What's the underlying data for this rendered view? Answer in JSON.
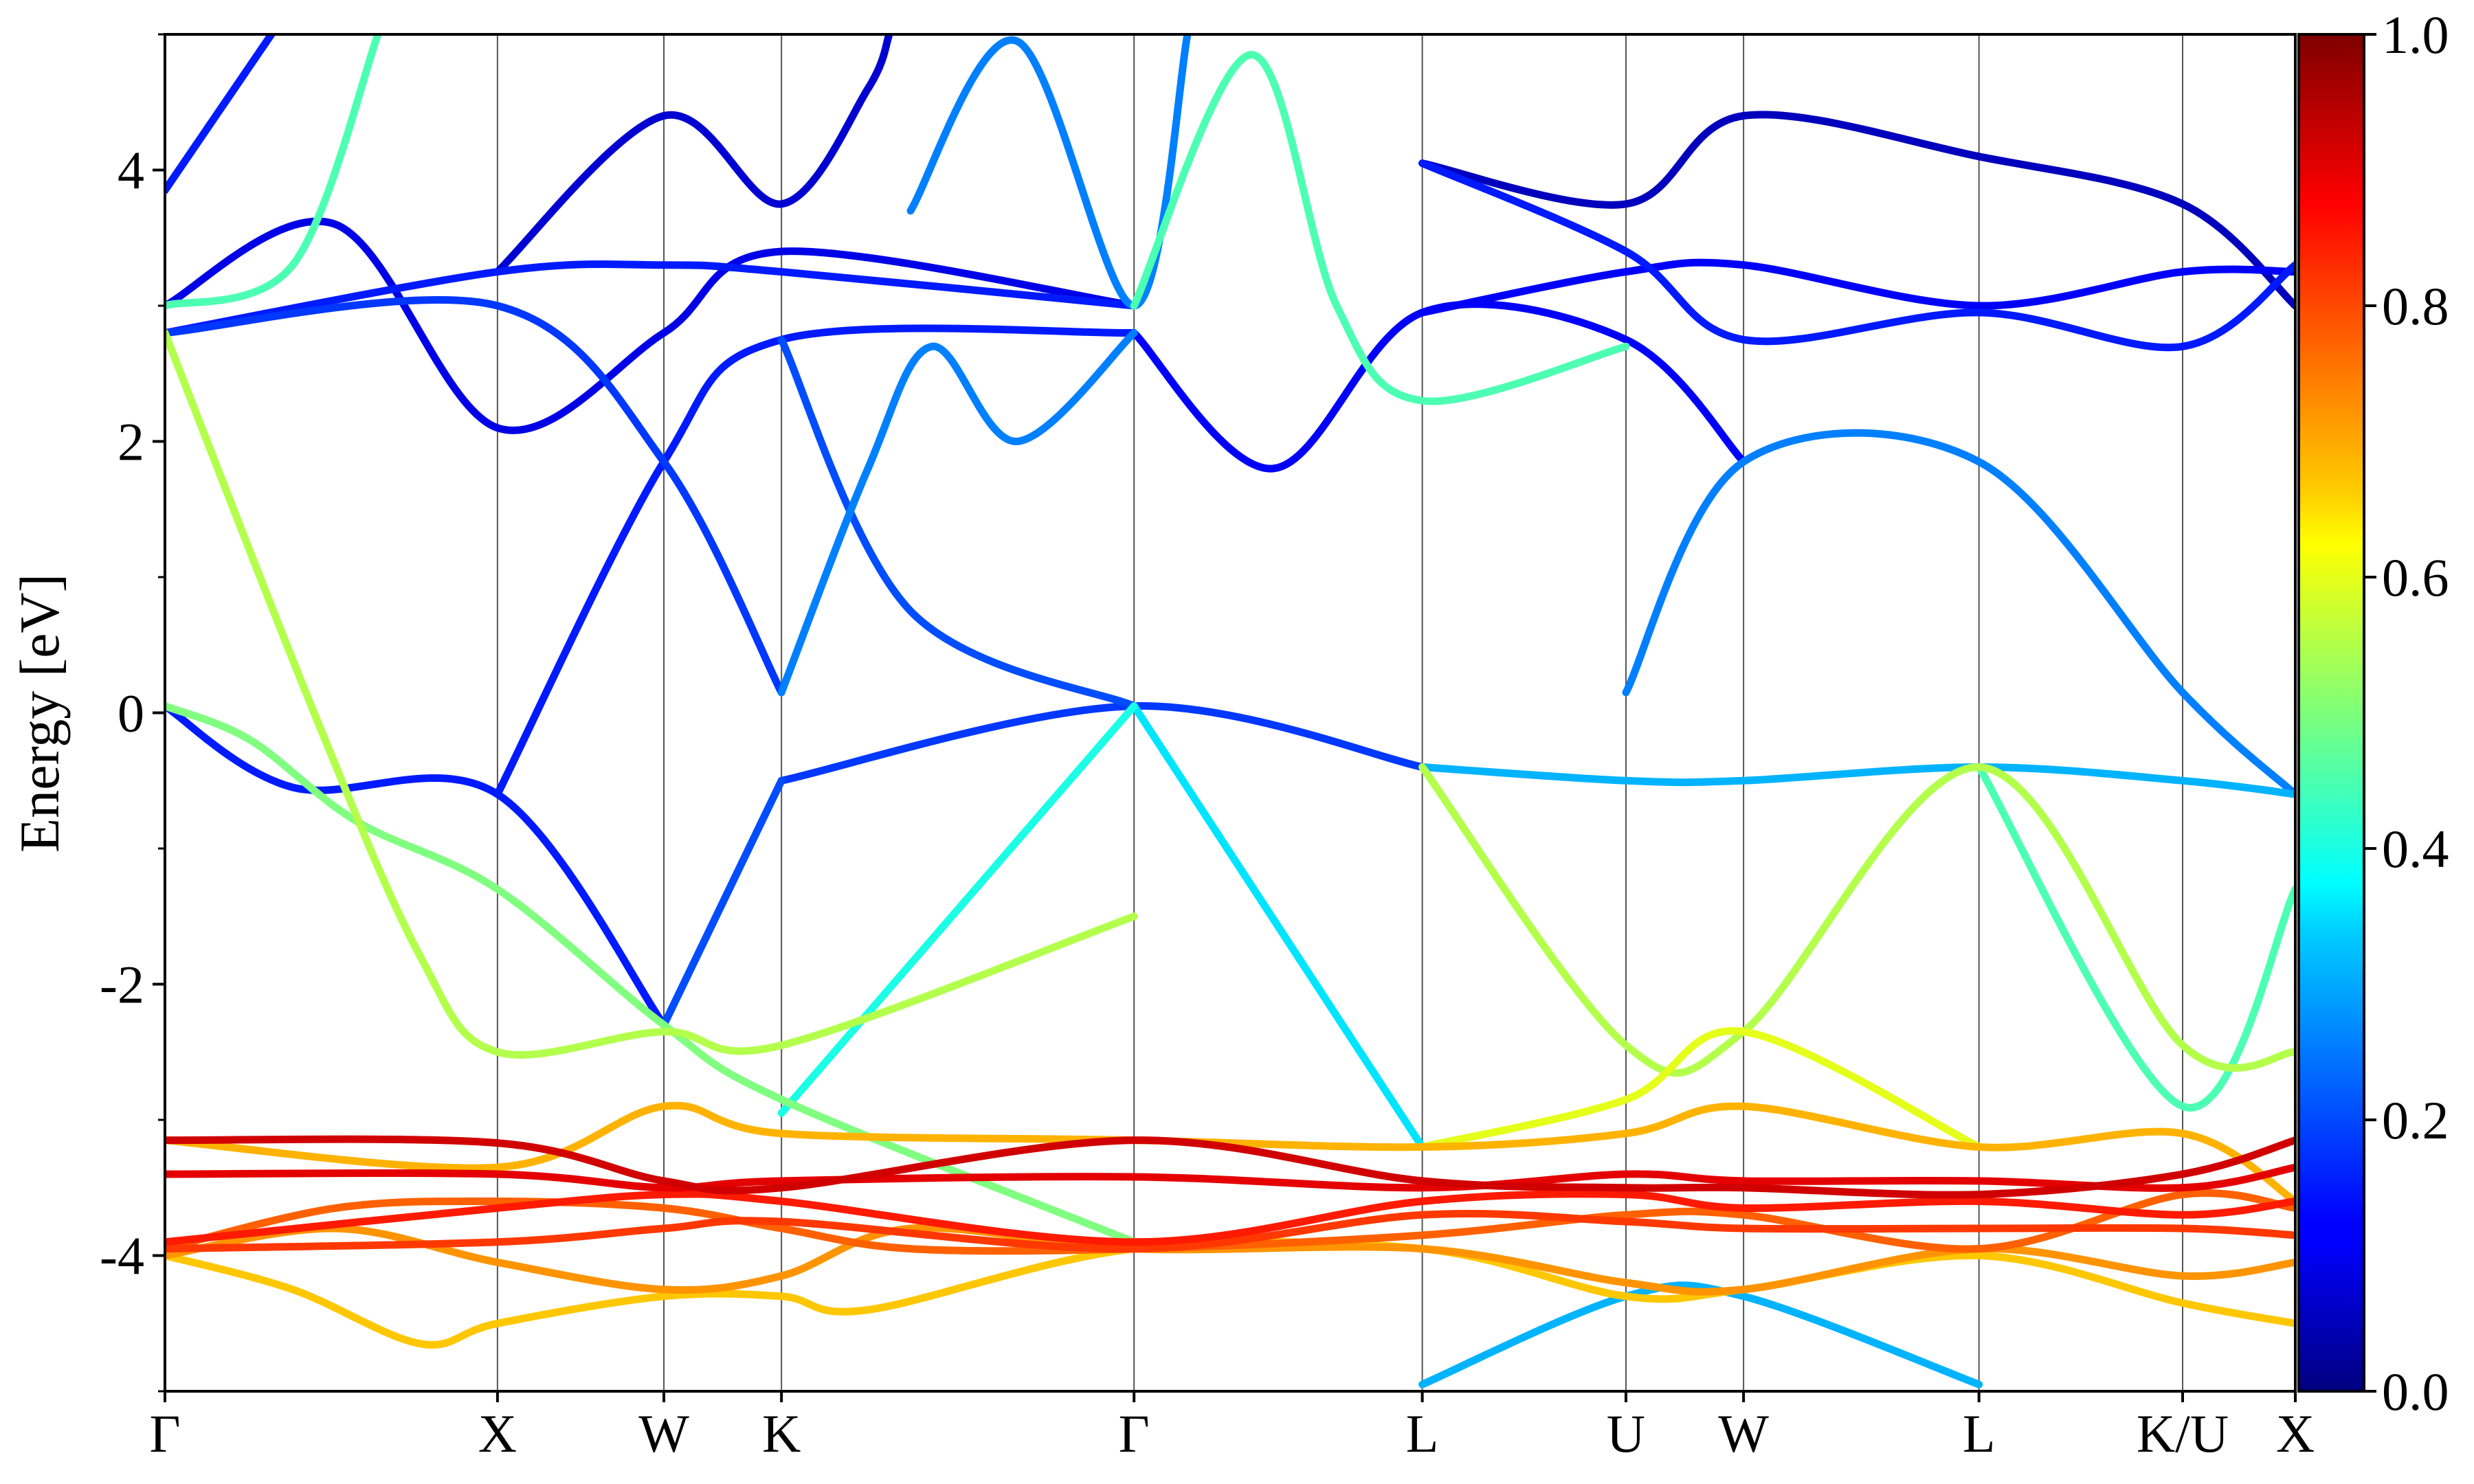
{
  "chart_data": {
    "type": "line",
    "title": "",
    "xlabel": "",
    "ylabel": "Energy [eV]",
    "ylim": [
      -5,
      5
    ],
    "yticks": [
      4,
      2,
      0,
      -2,
      -4
    ],
    "ytick_labels": [
      "4",
      "2",
      "0",
      "-2",
      "-4"
    ],
    "xlim": [
      0,
      1
    ],
    "kpath_labels": [
      "Γ",
      "X",
      "W",
      "K",
      "Γ",
      "L",
      "U",
      "W",
      "L",
      "K/U",
      "X"
    ],
    "kpath_positions": [
      0.0,
      0.1561,
      0.2342,
      0.2894,
      0.4549,
      0.5902,
      0.6858,
      0.741,
      0.8515,
      0.9471,
      1.0
    ],
    "colorbar": {
      "colormap": "jet",
      "range": [
        0,
        1
      ],
      "ticks": [
        0.0,
        0.2,
        0.4,
        0.6,
        0.8,
        1.0
      ],
      "tick_labels": [
        "0.0",
        "0.2",
        "0.4",
        "0.6",
        "0.8",
        "1.0"
      ]
    },
    "series": [
      {
        "w": 0.92,
        "points": [
          [
            0,
            -3.15
          ],
          [
            0.1561,
            -3.17
          ],
          [
            0.2342,
            -3.45
          ],
          [
            0.2894,
            -3.5
          ],
          [
            0.4549,
            -3.15
          ],
          [
            0.5902,
            -3.45
          ],
          [
            0.6858,
            -3.5
          ],
          [
            0.741,
            -3.5
          ],
          [
            0.8515,
            -3.55
          ],
          [
            0.9471,
            -3.4
          ],
          [
            1,
            -3.15
          ]
        ]
      },
      {
        "w": 0.9,
        "points": [
          [
            0,
            -3.4
          ],
          [
            0.1561,
            -3.4
          ],
          [
            0.2342,
            -3.5
          ],
          [
            0.2894,
            -3.45
          ],
          [
            0.4549,
            -3.42
          ],
          [
            0.5902,
            -3.5
          ],
          [
            0.6858,
            -3.4
          ],
          [
            0.741,
            -3.45
          ],
          [
            0.8515,
            -3.45
          ],
          [
            0.9471,
            -3.5
          ],
          [
            1,
            -3.35
          ]
        ]
      },
      {
        "w": 0.85,
        "points": [
          [
            0,
            -3.9
          ],
          [
            0.1561,
            -3.65
          ],
          [
            0.2342,
            -3.55
          ],
          [
            0.2894,
            -3.6
          ],
          [
            0.4549,
            -3.9
          ],
          [
            0.5902,
            -3.6
          ],
          [
            0.6858,
            -3.55
          ],
          [
            0.741,
            -3.65
          ],
          [
            0.8515,
            -3.6
          ],
          [
            0.9471,
            -3.7
          ],
          [
            1,
            -3.6
          ]
        ]
      },
      {
        "w": 0.82,
        "points": [
          [
            0,
            -3.95
          ],
          [
            0.1561,
            -3.9
          ],
          [
            0.2342,
            -3.8
          ],
          [
            0.2894,
            -3.75
          ],
          [
            0.4549,
            -3.95
          ],
          [
            0.5902,
            -3.7
          ],
          [
            0.6858,
            -3.75
          ],
          [
            0.741,
            -3.8
          ],
          [
            0.8515,
            -3.8
          ],
          [
            0.9471,
            -3.8
          ],
          [
            1,
            -3.85
          ]
        ]
      },
      {
        "w": 0.78,
        "points": [
          [
            0,
            -3.95
          ],
          [
            0.08,
            -3.65
          ],
          [
            0.1561,
            -3.6
          ],
          [
            0.2342,
            -3.65
          ],
          [
            0.2894,
            -3.8
          ],
          [
            0.35,
            -3.95
          ],
          [
            0.4549,
            -3.95
          ],
          [
            0.5902,
            -3.85
          ],
          [
            0.6858,
            -3.7
          ],
          [
            0.741,
            -3.7
          ],
          [
            0.8515,
            -3.95
          ],
          [
            0.9471,
            -3.55
          ],
          [
            1,
            -3.65
          ]
        ]
      },
      {
        "w": 0.73,
        "points": [
          [
            0,
            -4.0
          ],
          [
            0.08,
            -3.8
          ],
          [
            0.1561,
            -4.05
          ],
          [
            0.2342,
            -4.25
          ],
          [
            0.2894,
            -4.15
          ],
          [
            0.35,
            -3.8
          ],
          [
            0.4549,
            -3.95
          ],
          [
            0.5902,
            -3.95
          ],
          [
            0.6858,
            -4.2
          ],
          [
            0.741,
            -4.25
          ],
          [
            0.8515,
            -3.95
          ],
          [
            0.9471,
            -4.15
          ],
          [
            1,
            -4.05
          ]
        ]
      },
      {
        "w": 0.68,
        "points": [
          [
            0,
            -4.0
          ],
          [
            0.06,
            -4.25
          ],
          [
            0.12,
            -4.65
          ],
          [
            0.1561,
            -4.5
          ],
          [
            0.2342,
            -4.3
          ],
          [
            0.2894,
            -4.3
          ],
          [
            0.33,
            -4.4
          ],
          [
            0.4549,
            -3.95
          ],
          [
            0.5902,
            -3.95
          ],
          [
            0.6858,
            -4.3
          ],
          [
            0.741,
            -4.25
          ],
          [
            0.8515,
            -4.0
          ],
          [
            0.9471,
            -4.35
          ],
          [
            1,
            -4.5
          ]
        ]
      },
      {
        "w": 0.3,
        "points": [
          [
            0.5902,
            -4.95
          ],
          [
            0.6858,
            -4.3
          ],
          [
            0.741,
            -4.3
          ],
          [
            0.8515,
            -4.95
          ]
        ]
      },
      {
        "w": 0.7,
        "points": [
          [
            0,
            -3.15
          ],
          [
            0.1561,
            -3.35
          ],
          [
            0.2342,
            -2.9
          ],
          [
            0.2894,
            -3.1
          ],
          [
            0.4549,
            -3.15
          ],
          [
            0.5902,
            -3.2
          ],
          [
            0.6858,
            -3.1
          ],
          [
            0.741,
            -2.9
          ],
          [
            0.8515,
            -3.2
          ],
          [
            0.9471,
            -3.1
          ],
          [
            1,
            -3.6
          ]
        ]
      },
      {
        "w": 0.5,
        "points": [
          [
            0,
            0.05
          ],
          [
            0.04,
            -0.2
          ],
          [
            0.09,
            -0.8
          ],
          [
            0.1561,
            -1.3
          ],
          [
            0.2342,
            -2.3
          ],
          [
            0.2894,
            -2.85
          ],
          [
            0.4549,
            -3.9
          ]
        ]
      },
      {
        "w": 0.55,
        "points": [
          [
            0,
            2.8
          ],
          [
            0.07,
            0
          ],
          [
            0.12,
            -1.8
          ],
          [
            0.1561,
            -2.5
          ],
          [
            0.2342,
            -2.35
          ],
          [
            0.2894,
            -2.45
          ],
          [
            0.4549,
            -1.5
          ]
        ]
      },
      {
        "w": 0.6,
        "points": [
          [
            0.5902,
            -3.2
          ],
          [
            0.6858,
            -2.85
          ],
          [
            0.741,
            -2.35
          ],
          [
            0.8515,
            -3.2
          ]
        ]
      },
      {
        "w": 0.55,
        "points": [
          [
            0.5902,
            -0.4
          ],
          [
            0.6858,
            -2.45
          ],
          [
            0.741,
            -2.35
          ],
          [
            0.8515,
            -0.4
          ],
          [
            0.9471,
            -2.45
          ],
          [
            1,
            -2.5
          ]
        ]
      },
      {
        "w": 0.4,
        "points": [
          [
            0.2894,
            -2.95
          ],
          [
            0.4549,
            0.05
          ]
        ]
      },
      {
        "w": 0.35,
        "points": [
          [
            0.4549,
            0.05
          ],
          [
            0.5902,
            -3.2
          ]
        ]
      },
      {
        "w": 0.3,
        "points": [
          [
            0.5902,
            -0.4
          ],
          [
            0.6858,
            -0.5
          ],
          [
            0.741,
            -0.5
          ],
          [
            0.8515,
            -0.4
          ],
          [
            0.9471,
            -0.5
          ],
          [
            1,
            -0.6
          ]
        ]
      },
      {
        "w": 0.45,
        "points": [
          [
            0.8515,
            -0.4
          ],
          [
            0.9471,
            -2.9
          ],
          [
            1,
            -1.3
          ]
        ]
      },
      {
        "w": 0.15,
        "points": [
          [
            0,
            0.05
          ],
          [
            0.06,
            -0.55
          ],
          [
            0.1561,
            -0.6
          ],
          [
            0.2342,
            -2.3
          ]
        ]
      },
      {
        "w": 0.15,
        "points": [
          [
            0.1561,
            -0.6
          ],
          [
            0.2342,
            1.85
          ],
          [
            0.2894,
            2.75
          ],
          [
            0.4549,
            2.8
          ]
        ]
      },
      {
        "w": 0.18,
        "points": [
          [
            0.2894,
            -0.5
          ],
          [
            0.4549,
            0.05
          ],
          [
            0.5902,
            -0.4
          ]
        ]
      },
      {
        "w": 0.2,
        "points": [
          [
            0.2342,
            -2.3
          ],
          [
            0.2894,
            -0.5
          ]
        ]
      },
      {
        "w": 0.25,
        "points": [
          [
            0.2894,
            0.15
          ],
          [
            0.33,
            1.8
          ],
          [
            0.36,
            2.7
          ],
          [
            0.4,
            2.0
          ],
          [
            0.4549,
            2.8
          ]
        ]
      },
      {
        "w": 0.18,
        "points": [
          [
            0,
            2.8
          ],
          [
            0.1561,
            3.0
          ],
          [
            0.2342,
            1.85
          ],
          [
            0.2894,
            0.15
          ]
        ]
      },
      {
        "w": 0.2,
        "points": [
          [
            0.2894,
            2.75
          ],
          [
            0.35,
            0.75
          ],
          [
            0.4549,
            0.05
          ]
        ]
      },
      {
        "w": 0.25,
        "points": [
          [
            0.6858,
            0.15
          ],
          [
            0.741,
            1.85
          ],
          [
            0.8515,
            1.85
          ],
          [
            0.9471,
            0.15
          ],
          [
            1,
            -0.6
          ]
        ]
      },
      {
        "w": 0.12,
        "points": [
          [
            0.4549,
            2.8
          ],
          [
            0.52,
            1.8
          ],
          [
            0.5902,
            2.95
          ],
          [
            0.6858,
            2.75
          ],
          [
            0.741,
            1.85
          ]
        ]
      },
      {
        "w": 0.15,
        "points": [
          [
            0,
            2.8
          ],
          [
            0.1561,
            3.25
          ],
          [
            0.2342,
            3.3
          ],
          [
            0.2894,
            3.25
          ],
          [
            0.4549,
            3.0
          ]
        ]
      },
      {
        "w": 0.1,
        "points": [
          [
            0,
            3.0
          ],
          [
            0.08,
            3.6
          ],
          [
            0.1561,
            2.1
          ],
          [
            0.2342,
            2.8
          ],
          [
            0.2894,
            3.4
          ],
          [
            0.4549,
            3.0
          ]
        ]
      },
      {
        "w": 0.12,
        "points": [
          [
            0.5902,
            2.95
          ],
          [
            0.6858,
            3.25
          ],
          [
            0.741,
            3.3
          ],
          [
            0.8515,
            3.0
          ],
          [
            0.9471,
            3.25
          ],
          [
            1,
            3.25
          ]
        ]
      },
      {
        "w": 0.15,
        "points": [
          [
            0.5902,
            4.05
          ],
          [
            0.6858,
            3.4
          ],
          [
            0.741,
            2.75
          ],
          [
            0.8515,
            2.95
          ],
          [
            0.9471,
            2.7
          ],
          [
            1,
            3.3
          ]
        ]
      },
      {
        "w": 0.08,
        "points": [
          [
            0.1561,
            3.25
          ],
          [
            0.2342,
            4.4
          ],
          [
            0.2894,
            3.75
          ],
          [
            0.33,
            4.6
          ],
          [
            0.34,
            5.0
          ]
        ]
      },
      {
        "w": 0.06,
        "points": [
          [
            0.5902,
            4.05
          ],
          [
            0.6858,
            3.75
          ],
          [
            0.741,
            4.4
          ],
          [
            0.8515,
            4.1
          ],
          [
            0.9471,
            3.75
          ],
          [
            1,
            3.0
          ]
        ]
      },
      {
        "w": 0.45,
        "points": [
          [
            0,
            3.0
          ],
          [
            0.06,
            3.3
          ],
          [
            0.1,
            5.0
          ]
        ]
      },
      {
        "w": 0.45,
        "points": [
          [
            0.4549,
            3.0
          ],
          [
            0.51,
            4.85
          ],
          [
            0.55,
            3.0
          ],
          [
            0.5902,
            2.3
          ],
          [
            0.6858,
            2.7
          ]
        ]
      },
      {
        "w": 0.25,
        "points": [
          [
            0.35,
            3.7
          ],
          [
            0.4,
            4.95
          ],
          [
            0.4549,
            3.0
          ],
          [
            0.48,
            5.0
          ]
        ]
      },
      {
        "w": 0.15,
        "points": [
          [
            0,
            3.85
          ],
          [
            0.05,
            5.0
          ]
        ]
      }
    ]
  }
}
